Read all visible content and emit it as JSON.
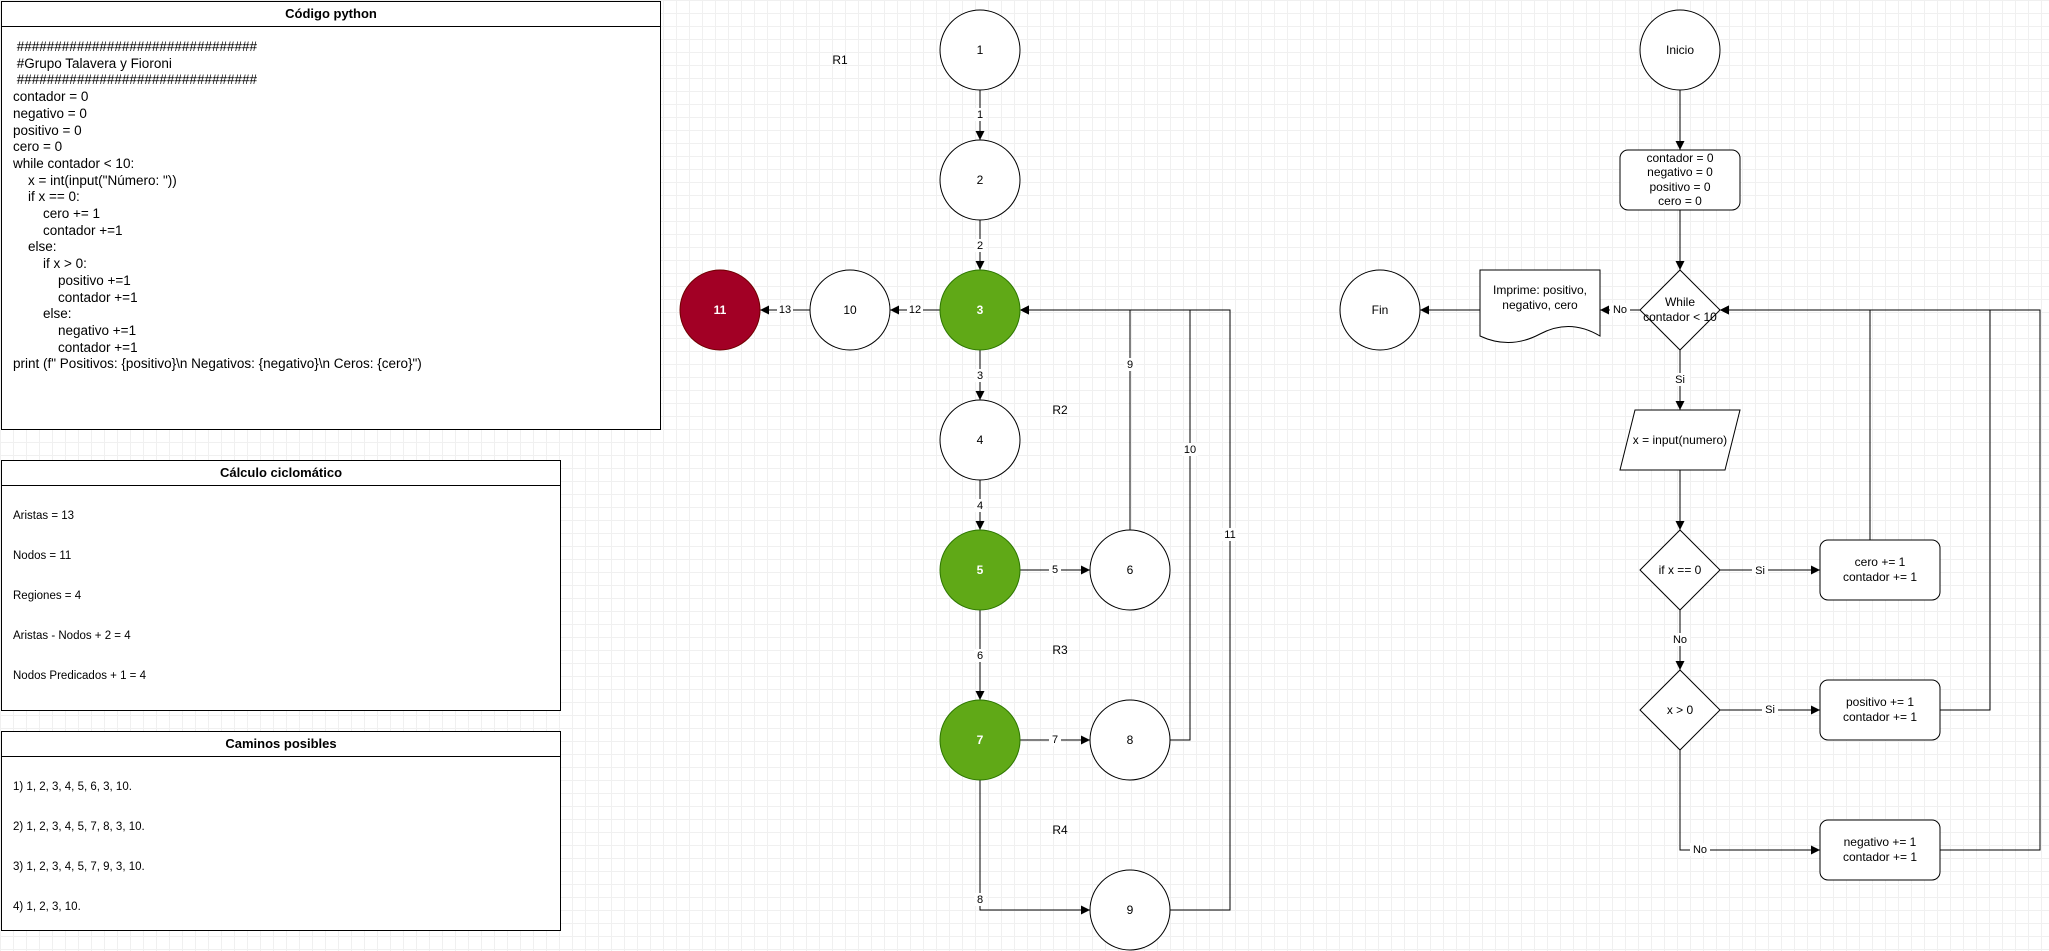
{
  "code_panel": {
    "title": "Código python",
    "lines": [
      " ################################",
      " #Grupo Talavera y Fioroni",
      " ################################",
      "",
      "",
      "contador = 0",
      "negativo = 0",
      "positivo = 0",
      "cero = 0",
      "",
      "while contador < 10:",
      "    x = int(input(\"Número: \"))",
      "    if x == 0:",
      "        cero += 1",
      "        contador +=1",
      "    else:",
      "        if x > 0:",
      "            positivo +=1",
      "            contador +=1",
      "        else:",
      "            negativo +=1",
      "            contador +=1",
      "print (f\" Positivos: {positivo}\\n Negativos: {negativo}\\n Ceros: {cero}\")"
    ]
  },
  "cyclomatic_panel": {
    "title": "Cálculo ciclomático",
    "lines": [
      "Aristas = 13",
      "Nodos = 11",
      "Regiones = 4",
      "Aristas - Nodos + 2 = 4",
      "Nodos Predicados + 1 = 4"
    ]
  },
  "paths_panel": {
    "title": "Caminos posibles",
    "lines": [
      "1) 1, 2, 3, 4, 5, 6, 3, 10.",
      "2) 1, 2, 3, 4, 5, 7, 8, 3, 10.",
      "3) 1, 2, 3, 4, 5, 7, 9, 3, 10.",
      "4) 1, 2, 3, 10."
    ]
  },
  "graph": {
    "colors": {
      "predicate": "#60a917",
      "end": "#a20025"
    },
    "nodes": [
      {
        "id": "n1",
        "label": "1",
        "kind": "normal"
      },
      {
        "id": "n2",
        "label": "2",
        "kind": "normal"
      },
      {
        "id": "n3",
        "label": "3",
        "kind": "predicate"
      },
      {
        "id": "n4",
        "label": "4",
        "kind": "normal"
      },
      {
        "id": "n5",
        "label": "5",
        "kind": "predicate"
      },
      {
        "id": "n6",
        "label": "6",
        "kind": "normal"
      },
      {
        "id": "n7",
        "label": "7",
        "kind": "predicate"
      },
      {
        "id": "n8",
        "label": "8",
        "kind": "normal"
      },
      {
        "id": "n9",
        "label": "9",
        "kind": "normal"
      },
      {
        "id": "n10",
        "label": "10",
        "kind": "normal"
      },
      {
        "id": "n11",
        "label": "11",
        "kind": "end"
      }
    ],
    "edges": [
      {
        "id": "e1",
        "from": "1",
        "to": "2",
        "label": "1"
      },
      {
        "id": "e2",
        "from": "2",
        "to": "3",
        "label": "2"
      },
      {
        "id": "e3",
        "from": "3",
        "to": "4",
        "label": "3"
      },
      {
        "id": "e4",
        "from": "4",
        "to": "5",
        "label": "4"
      },
      {
        "id": "e5",
        "from": "5",
        "to": "6",
        "label": "5"
      },
      {
        "id": "e6",
        "from": "5",
        "to": "7",
        "label": "6"
      },
      {
        "id": "e7",
        "from": "7",
        "to": "8",
        "label": "7"
      },
      {
        "id": "e8",
        "from": "7",
        "to": "9",
        "label": "8"
      },
      {
        "id": "e9",
        "from": "6",
        "to": "3",
        "label": "9"
      },
      {
        "id": "e10",
        "from": "8",
        "to": "3",
        "label": "10"
      },
      {
        "id": "e11",
        "from": "9",
        "to": "3",
        "label": "11"
      },
      {
        "id": "e12",
        "from": "3",
        "to": "10",
        "label": "12"
      },
      {
        "id": "e13",
        "from": "10",
        "to": "11",
        "label": "13"
      }
    ],
    "regions": [
      "R1",
      "R2",
      "R3",
      "R4"
    ]
  },
  "flowchart": {
    "start": "Inicio",
    "init": [
      "contador = 0",
      "negativo = 0",
      "positivo = 0",
      "cero = 0"
    ],
    "loop": [
      "While",
      "contador < 10"
    ],
    "input": "x = input(numero)",
    "if_zero": "if x == 0",
    "if_positive": "x > 0",
    "zero_block": [
      "cero += 1",
      "contador += 1"
    ],
    "positive_block": [
      "positivo += 1",
      "contador += 1"
    ],
    "negative_block": [
      "negativo += 1",
      "contador += 1"
    ],
    "print_block": [
      "Imprime: positivo,",
      "negativo, cero"
    ],
    "end": "Fin",
    "labels": {
      "no": "No",
      "yes": "Si"
    }
  }
}
